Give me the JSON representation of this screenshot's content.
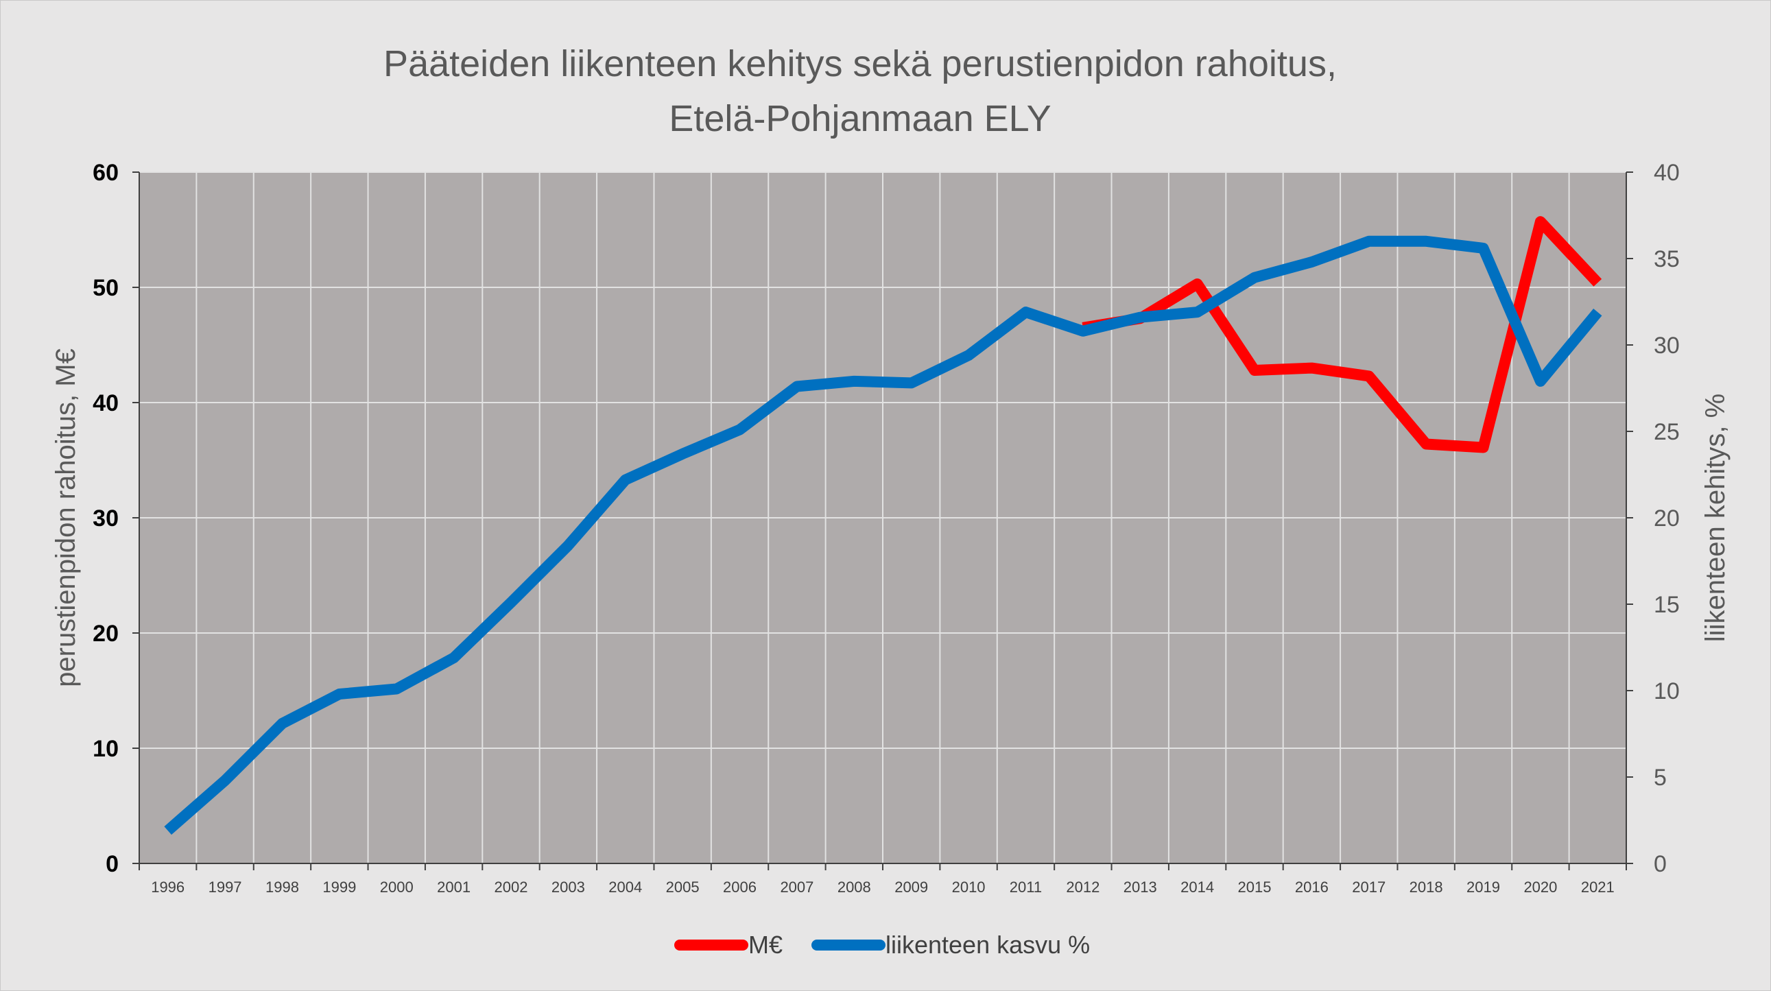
{
  "chart_data": {
    "type": "line",
    "title_line1": "Pääteiden liikenteen kehitys sekä perustienpidon rahoitus,",
    "title_line2": "Etelä-Pohjanmaan ELY",
    "ylabel_left": "perustienpidon rahoitus, M€",
    "ylabel_right": "liikenteen kehitys, %",
    "categories": [
      "1996",
      "1997",
      "1998",
      "1999",
      "2000",
      "2001",
      "2002",
      "2003",
      "2004",
      "2005",
      "2006",
      "2007",
      "2008",
      "2009",
      "2010",
      "2011",
      "2012",
      "2013",
      "2014",
      "2015",
      "2016",
      "2017",
      "2018",
      "2019",
      "2020",
      "2021"
    ],
    "ylim_left": [
      0,
      60
    ],
    "yticks_left": [
      "0",
      "10",
      "20",
      "30",
      "40",
      "50",
      "60"
    ],
    "ylim_right": [
      0,
      40
    ],
    "yticks_right": [
      "0",
      "5",
      "10",
      "15",
      "20",
      "25",
      "30",
      "35",
      "40"
    ],
    "grid": true,
    "legend_position": "bottom",
    "series": [
      {
        "name": "M€",
        "axis": "left",
        "color": "#ff0000",
        "values": [
          null,
          null,
          null,
          null,
          null,
          null,
          null,
          null,
          null,
          null,
          null,
          null,
          null,
          null,
          null,
          null,
          46.5,
          47.3,
          50.3,
          42.8,
          43.0,
          42.3,
          36.4,
          36.1,
          55.7,
          50.4
        ]
      },
      {
        "name": "liikenteen kasvu %",
        "axis": "right",
        "color": "#0070c0",
        "values": [
          1.9,
          4.8,
          8.1,
          9.8,
          10.1,
          11.9,
          15.1,
          18.4,
          22.2,
          23.7,
          25.1,
          27.6,
          27.9,
          27.8,
          29.4,
          31.9,
          30.8,
          31.6,
          31.9,
          33.9,
          34.8,
          36.0,
          36.0,
          35.6,
          27.9,
          31.9
        ]
      }
    ]
  }
}
